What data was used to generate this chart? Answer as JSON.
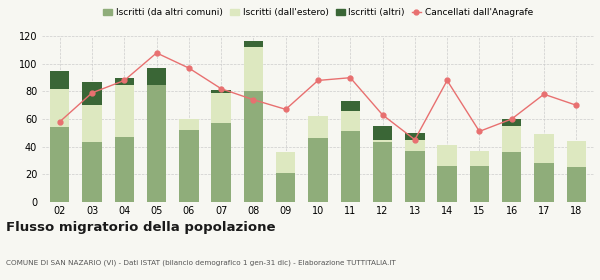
{
  "years": [
    "02",
    "03",
    "04",
    "05",
    "06",
    "07",
    "08",
    "09",
    "10",
    "11",
    "12",
    "13",
    "14",
    "15",
    "16",
    "17",
    "18"
  ],
  "iscritti_comuni": [
    54,
    43,
    47,
    85,
    52,
    57,
    80,
    21,
    46,
    51,
    43,
    37,
    26,
    26,
    36,
    28,
    25
  ],
  "iscritti_estero": [
    28,
    27,
    38,
    0,
    8,
    22,
    32,
    15,
    16,
    15,
    2,
    8,
    15,
    11,
    19,
    21,
    19
  ],
  "iscritti_altri": [
    13,
    17,
    5,
    12,
    0,
    2,
    5,
    0,
    0,
    7,
    10,
    5,
    0,
    0,
    5,
    0,
    0
  ],
  "cancellati": [
    58,
    79,
    88,
    108,
    97,
    82,
    74,
    67,
    88,
    90,
    63,
    45,
    88,
    51,
    60,
    78,
    70
  ],
  "color_comuni": "#8fad7a",
  "color_estero": "#dde8c0",
  "color_altri": "#3a6636",
  "color_cancellati": "#e87070",
  "ylim": [
    0,
    120
  ],
  "yticks": [
    0,
    20,
    40,
    60,
    80,
    100,
    120
  ],
  "title": "Flusso migratorio della popolazione",
  "subtitle": "COMUNE DI SAN NAZARIO (VI) - Dati ISTAT (bilancio demografico 1 gen-31 dic) - Elaborazione TUTTITALIA.IT",
  "legend_labels": [
    "Iscritti (da altri comuni)",
    "Iscritti (dall'estero)",
    "Iscritti (altri)",
    "Cancellati dall'Anagrafe"
  ],
  "background_color": "#f7f7f2"
}
